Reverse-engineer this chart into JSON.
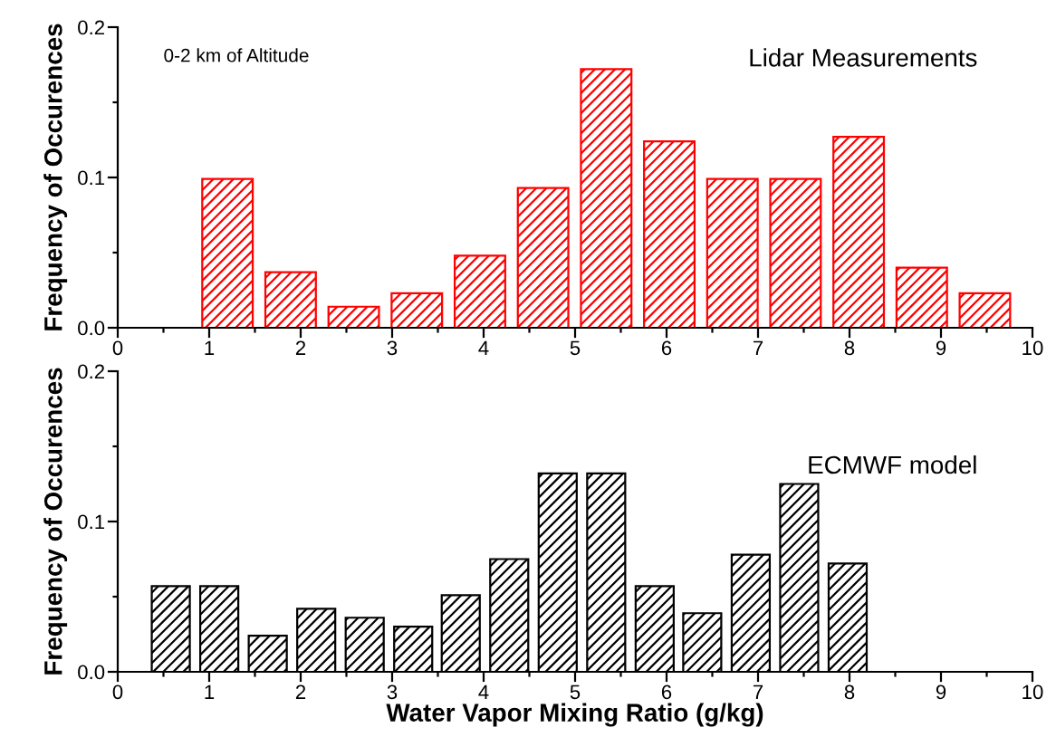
{
  "chart_data": [
    {
      "type": "bar",
      "ylabel": "Frequency of Occurences",
      "annotations": [
        "0-2 km of Altitude",
        "Lidar Measurements"
      ],
      "x": [
        1.2,
        1.89,
        2.58,
        3.27,
        3.96,
        4.65,
        5.34,
        6.03,
        6.72,
        7.41,
        8.1,
        8.79,
        9.48
      ],
      "series": [
        {
          "color": "#ff0000",
          "values": [
            0.099,
            0.037,
            0.014,
            0.023,
            0.048,
            0.093,
            0.172,
            0.124,
            0.099,
            0.099,
            0.127,
            0.04,
            0.023
          ]
        }
      ],
      "xlim": [
        0,
        10
      ],
      "xticks": [
        0,
        1,
        2,
        3,
        4,
        5,
        6,
        7,
        8,
        9,
        10
      ],
      "ylim": [
        0,
        0.2
      ],
      "yticks": [
        {
          "value": 0,
          "label": "0.0"
        },
        {
          "value": 0.1,
          "label": "0.1"
        },
        {
          "value": 0.2,
          "label": "0.2"
        }
      ]
    },
    {
      "type": "bar",
      "ylabel": "Frequency of Occurences",
      "xlabel": "Water Vapor Mixing Ratio (g/kg)",
      "annotations": [
        "ECMWF model"
      ],
      "x": [
        0.58,
        1.11,
        1.64,
        2.17,
        2.7,
        3.23,
        3.75,
        4.28,
        4.81,
        5.34,
        5.87,
        6.39,
        6.92,
        7.45,
        7.98
      ],
      "series": [
        {
          "color": "#000000",
          "values": [
            0.057,
            0.057,
            0.024,
            0.042,
            0.036,
            0.03,
            0.051,
            0.075,
            0.132,
            0.132,
            0.057,
            0.039,
            0.078,
            0.125,
            0.072
          ]
        }
      ],
      "xlim": [
        0,
        10
      ],
      "xticks": [
        0,
        1,
        2,
        3,
        4,
        5,
        6,
        7,
        8,
        9,
        10
      ],
      "ylim": [
        0,
        0.2
      ],
      "yticks": [
        {
          "value": 0,
          "label": "0.0"
        },
        {
          "value": 0.1,
          "label": "0.1"
        },
        {
          "value": 0.2,
          "label": "0.2"
        }
      ]
    }
  ]
}
